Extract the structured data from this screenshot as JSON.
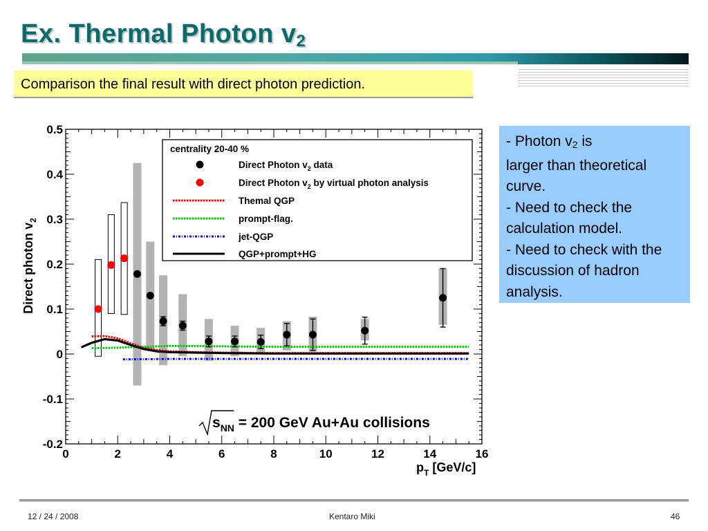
{
  "slide": {
    "title_main": "Ex. Thermal Photon v",
    "title_sub": "2",
    "subtitle": "Comparison the final result with direct photon prediction.",
    "notes": {
      "line1_a": "- Photon v",
      "line1_sub": "2",
      "line1_b": " is",
      "line2": "larger than theoretical curve.",
      "line3": "- Need to check the calculation model.",
      "line4": "- Need to check with the discussion of hadron analysis."
    },
    "footer": {
      "date": "12 / 24 / 2008",
      "author": "Kentaro Miki",
      "page": "46"
    }
  },
  "chart_data": {
    "type": "scatter",
    "ylabel_main": "Direct photon v",
    "ylabel_sub": "2",
    "xlabel_main": "p",
    "xlabel_sub": "T",
    "xlabel_unit": " [GeV/c]",
    "xlim": [
      0,
      16
    ],
    "ylim": [
      -0.2,
      0.5
    ],
    "xticks": [
      "0",
      "2",
      "4",
      "6",
      "8",
      "10",
      "12",
      "14",
      "16"
    ],
    "yticks": [
      "-0.2",
      "-0.1",
      "0",
      "0.1",
      "0.2",
      "0.3",
      "0.4",
      "0.5"
    ],
    "annotation_sqrt": "s",
    "annotation_sub": "NN",
    "annotation_rest": " = 200 GeV Au+Au collisions",
    "legend_title": "centrality 20-40 %",
    "legend_position": "top-right",
    "legend": [
      {
        "label_a": "Direct Photon v",
        "label_sub": "2",
        "label_b": " data",
        "marker": "circle",
        "color": "#000000"
      },
      {
        "label_a": "Direct Photon v",
        "label_sub": "2",
        "label_b": " by virtual photon analysis",
        "marker": "circle",
        "color": "#ff0000"
      },
      {
        "label_a": "Themal QGP",
        "label_sub": "",
        "label_b": "",
        "marker": "line-dotted",
        "color": "#ff0000"
      },
      {
        "label_a": "prompt-flag.",
        "label_sub": "",
        "label_b": "",
        "marker": "line-dotted",
        "color": "#00cc00"
      },
      {
        "label_a": "jet-QGP",
        "label_sub": "",
        "label_b": "",
        "marker": "line-dashdot",
        "color": "#0000ff"
      },
      {
        "label_a": "QGP+prompt+HG",
        "label_sub": "",
        "label_b": "",
        "marker": "line-solid",
        "color": "#000000"
      }
    ],
    "series": [
      {
        "name": "Direct Photon v2 data",
        "color": "#000000",
        "points": [
          {
            "x": 2.75,
            "y": 0.178,
            "err": 0.0,
            "sys_lo": -0.07,
            "sys_hi": 0.425
          },
          {
            "x": 3.25,
            "y": 0.13,
            "err": 0.0,
            "sys_lo": 0.01,
            "sys_hi": 0.25
          },
          {
            "x": 3.75,
            "y": 0.073,
            "err": 0.01,
            "sys_lo": -0.025,
            "sys_hi": 0.175
          },
          {
            "x": 4.5,
            "y": 0.063,
            "err": 0.01,
            "sys_lo": -0.005,
            "sys_hi": 0.133
          },
          {
            "x": 5.5,
            "y": 0.028,
            "err": 0.012,
            "sys_lo": -0.015,
            "sys_hi": 0.078
          },
          {
            "x": 6.5,
            "y": 0.028,
            "err": 0.012,
            "sys_lo": -0.005,
            "sys_hi": 0.063
          },
          {
            "x": 7.5,
            "y": 0.027,
            "err": 0.015,
            "sys_lo": 0.0,
            "sys_hi": 0.058
          },
          {
            "x": 8.5,
            "y": 0.043,
            "err": 0.025,
            "sys_lo": 0.008,
            "sys_hi": 0.073
          },
          {
            "x": 9.5,
            "y": 0.043,
            "err": 0.035,
            "sys_lo": 0.005,
            "sys_hi": 0.083
          },
          {
            "x": 11.5,
            "y": 0.052,
            "err": 0.03,
            "sys_lo": 0.03,
            "sys_hi": 0.078
          },
          {
            "x": 14.5,
            "y": 0.125,
            "err": 0.065,
            "sys_lo": 0.065,
            "sys_hi": 0.19
          }
        ]
      },
      {
        "name": "Direct Photon v2 by virtual photon analysis",
        "color": "#ff0000",
        "points": [
          {
            "x": 1.25,
            "y": 0.1,
            "box_lo": -0.005,
            "box_hi": 0.21
          },
          {
            "x": 1.75,
            "y": 0.198,
            "box_lo": 0.09,
            "box_hi": 0.31
          },
          {
            "x": 2.25,
            "y": 0.213,
            "box_lo": 0.088,
            "box_hi": 0.337
          }
        ]
      }
    ],
    "curves": [
      {
        "name": "Themal QGP",
        "color": "#ff0000",
        "style": "dotted",
        "x": [
          1.0,
          1.5,
          2.0,
          2.5,
          3.0,
          3.5,
          4.0,
          5.0,
          6.0,
          8.0,
          10.0,
          12.0,
          15.5
        ],
        "y": [
          0.039,
          0.04,
          0.035,
          0.024,
          0.014,
          0.009,
          0.006,
          0.004,
          0.003,
          0.002,
          0.002,
          0.002,
          0.002
        ]
      },
      {
        "name": "prompt-flag.",
        "color": "#00cc00",
        "style": "dotted",
        "x": [
          1.0,
          2.0,
          3.0,
          4.0,
          6.0,
          8.0,
          10.0,
          12.0,
          15.5
        ],
        "y": [
          0.013,
          0.014,
          0.016,
          0.018,
          0.017,
          0.016,
          0.016,
          0.016,
          0.016
        ]
      },
      {
        "name": "jet-QGP",
        "color": "#0000ff",
        "style": "dashdot",
        "x": [
          2.2,
          4.0,
          6.0,
          8.0,
          10.0,
          12.0,
          15.5
        ],
        "y": [
          -0.012,
          -0.011,
          -0.011,
          -0.011,
          -0.011,
          -0.011,
          -0.011
        ]
      },
      {
        "name": "QGP+prompt+HG",
        "color": "#000000",
        "style": "solid",
        "x": [
          0.6,
          1.0,
          1.5,
          2.0,
          2.5,
          3.0,
          3.5,
          4.0,
          5.0,
          6.0,
          8.0,
          10.0,
          12.0,
          15.5
        ],
        "y": [
          0.015,
          0.025,
          0.033,
          0.03,
          0.02,
          0.011,
          0.006,
          0.004,
          0.003,
          0.002,
          0.001,
          0.001,
          0.001,
          0.001
        ]
      }
    ]
  }
}
